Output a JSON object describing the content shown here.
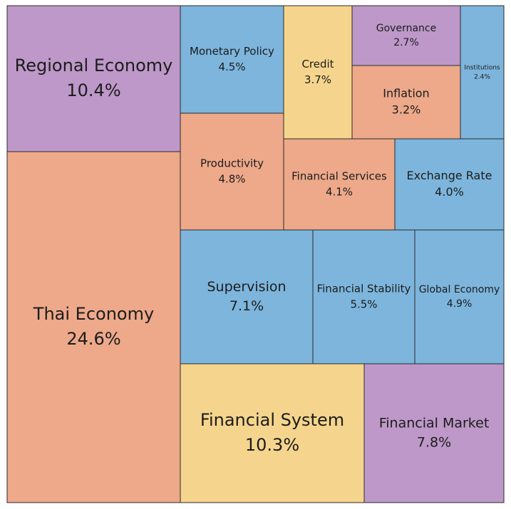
{
  "chart_data": {
    "type": "treemap",
    "colors": {
      "purple": "#bd98c8",
      "salmon": "#eda98a",
      "blue": "#7db5dc",
      "yellow": "#f5d58d"
    },
    "items": [
      {
        "name": "Thai Economy",
        "value": 24.6,
        "label": "24.6%",
        "color": "salmon"
      },
      {
        "name": "Regional Economy",
        "value": 10.4,
        "label": "10.4%",
        "color": "purple"
      },
      {
        "name": "Financial System",
        "value": 10.3,
        "label": "10.3%",
        "color": "yellow"
      },
      {
        "name": "Financial Market",
        "value": 7.8,
        "label": "7.8%",
        "color": "purple"
      },
      {
        "name": "Supervision",
        "value": 7.1,
        "label": "7.1%",
        "color": "blue"
      },
      {
        "name": "Financial Stability",
        "value": 5.5,
        "label": "5.5%",
        "color": "blue"
      },
      {
        "name": "Global Economy",
        "value": 4.9,
        "label": "4.9%",
        "color": "blue"
      },
      {
        "name": "Productivity",
        "value": 4.8,
        "label": "4.8%",
        "color": "salmon"
      },
      {
        "name": "Monetary Policy",
        "value": 4.5,
        "label": "4.5%",
        "color": "blue"
      },
      {
        "name": "Financial Services",
        "value": 4.1,
        "label": "4.1%",
        "color": "salmon"
      },
      {
        "name": "Exchange Rate",
        "value": 4.0,
        "label": "4.0%",
        "color": "blue"
      },
      {
        "name": "Credit",
        "value": 3.7,
        "label": "3.7%",
        "color": "yellow"
      },
      {
        "name": "Inflation",
        "value": 3.2,
        "label": "3.2%",
        "color": "salmon"
      },
      {
        "name": "Governance",
        "value": 2.7,
        "label": "2.7%",
        "color": "purple"
      },
      {
        "name": "Institutions",
        "value": 2.4,
        "label": "2.4%",
        "color": "blue"
      }
    ]
  }
}
